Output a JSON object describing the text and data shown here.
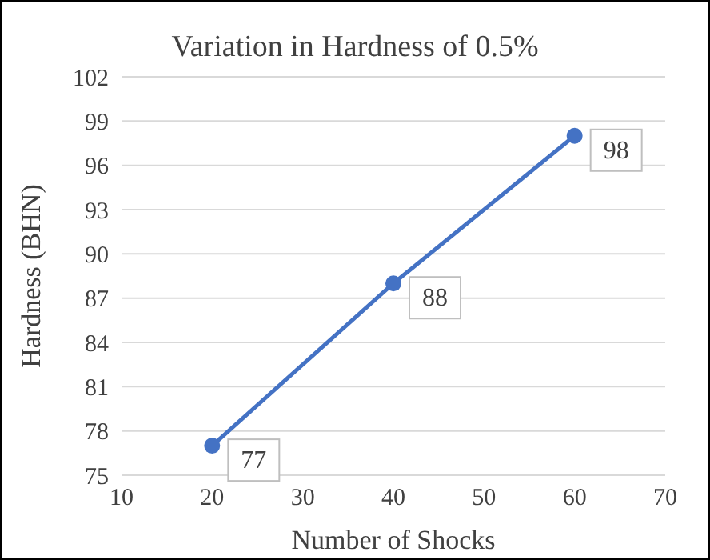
{
  "chart_data": {
    "type": "line",
    "title": "Variation in Hardness of 0.5%",
    "xlabel": "Number of Shocks",
    "ylabel": "Hardness (BHN)",
    "x": [
      20,
      40,
      60
    ],
    "series": [
      {
        "color": "#4472c4",
        "values": [
          77,
          88,
          98
        ]
      }
    ],
    "xlim": [
      10,
      70
    ],
    "xticks": [
      10,
      20,
      30,
      40,
      50,
      60,
      70
    ],
    "ylim": [
      75,
      102
    ],
    "yticks": [
      75,
      78,
      81,
      84,
      87,
      90,
      93,
      96,
      99,
      102
    ],
    "grid": "y",
    "marker": "circle",
    "line_style": "solid",
    "data_labels": true
  }
}
